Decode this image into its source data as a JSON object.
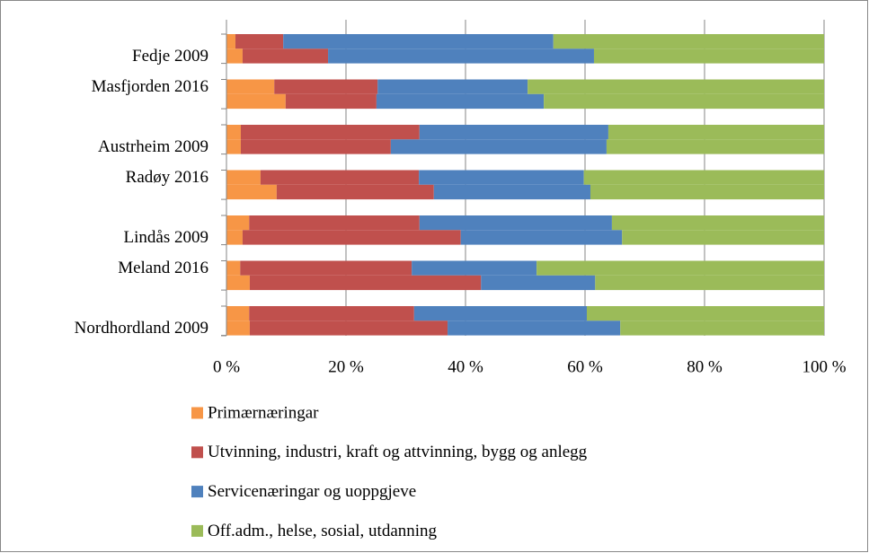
{
  "chart_data": {
    "type": "stacked_bar_horizontal",
    "categories": [
      null,
      "Fedje 2009",
      "Masfjorden 2016",
      null,
      null,
      "Austrheim 2009",
      "Radøy 2016",
      null,
      null,
      "Lindås 2009",
      "Meland 2016",
      null,
      null,
      "Nordhordland 2009"
    ],
    "series": [
      {
        "name": "Primærnæringar",
        "color": "#f79646",
        "values": [
          1.5,
          2.7,
          8.0,
          9.9,
          2.4,
          2.4,
          5.7,
          8.4,
          3.8,
          2.7,
          2.3,
          3.9,
          3.8,
          3.9
        ]
      },
      {
        "name": "Utvinning, industri, kraft og attvinning, bygg og anlegg",
        "color": "#c0504d",
        "values": [
          8.0,
          14.3,
          17.3,
          15.2,
          29.9,
          25.1,
          26.5,
          26.3,
          28.5,
          36.5,
          28.7,
          38.7,
          27.6,
          33.1
        ]
      },
      {
        "name": "Servicenæringar og uoppgjeve",
        "color": "#4f81bd",
        "values": [
          45.2,
          44.5,
          25.1,
          28.0,
          31.6,
          36.1,
          27.6,
          26.2,
          32.2,
          27.0,
          20.9,
          19.1,
          28.9,
          28.9
        ]
      },
      {
        "name": "Off.adm., helse, sosial, utdanning",
        "color": "#9bbb59",
        "values": [
          45.3,
          38.5,
          49.6,
          46.9,
          36.1,
          36.4,
          40.2,
          39.1,
          35.5,
          33.8,
          48.1,
          38.3,
          39.7,
          34.1
        ]
      }
    ],
    "xlim": [
      0,
      100
    ],
    "xticks": [
      {
        "value": 0,
        "label": "0 %"
      },
      {
        "value": 20,
        "label": "20 %"
      },
      {
        "value": 40,
        "label": "40 %"
      },
      {
        "value": 60,
        "label": "60 %"
      },
      {
        "value": 80,
        "label": "80 %"
      },
      {
        "value": 100,
        "label": "100 %"
      }
    ],
    "grid": true,
    "legend": "bottom"
  }
}
